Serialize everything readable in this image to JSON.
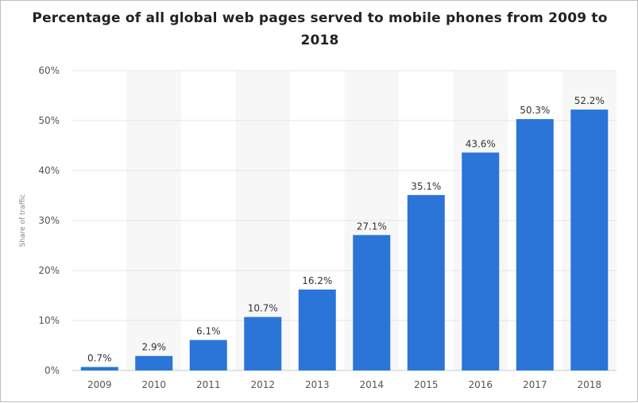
{
  "chart_data": {
    "type": "bar",
    "title": "Percentage of all global web pages served to mobile phones from 2009 to 2018",
    "xlabel": "",
    "ylabel": "Share of traffic",
    "categories": [
      "2009",
      "2010",
      "2011",
      "2012",
      "2013",
      "2014",
      "2015",
      "2016",
      "2017",
      "2018"
    ],
    "values": [
      0.7,
      2.9,
      6.1,
      10.7,
      16.2,
      27.1,
      35.1,
      43.6,
      50.3,
      52.2
    ],
    "value_labels": [
      "0.7%",
      "2.9%",
      "6.1%",
      "10.7%",
      "16.2%",
      "27.1%",
      "35.1%",
      "43.6%",
      "50.3%",
      "52.2%"
    ],
    "ylim": [
      0,
      60
    ],
    "yticks": [
      0,
      10,
      20,
      30,
      40,
      50,
      60
    ],
    "ytick_labels": [
      "0%",
      "10%",
      "20%",
      "30%",
      "40%",
      "50%",
      "60%"
    ],
    "grid": true,
    "legend": "none",
    "bar_color": "#2b75d8"
  }
}
